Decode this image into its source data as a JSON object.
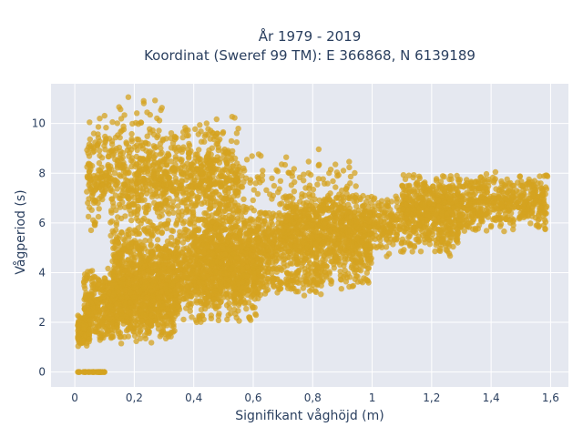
{
  "chart_data": {
    "type": "scatter",
    "title_line1": "År 1979 - 2019",
    "title_line2": "Koordinat (Sweref 99 TM): E 366868, N 6139189",
    "xlabel": "Signifikant våghöjd (m)",
    "ylabel": "Vågperiod (s)",
    "xlim": [
      -0.08,
      1.66
    ],
    "ylim": [
      -0.6,
      11.6
    ],
    "x_ticks": [
      0,
      0.2,
      0.4,
      0.6,
      0.8,
      1,
      1.2,
      1.4,
      1.6
    ],
    "x_tick_labels": [
      "0",
      "0,2",
      "0,4",
      "0,6",
      "0,8",
      "1",
      "1,2",
      "1,4",
      "1,6"
    ],
    "y_ticks": [
      0,
      2,
      4,
      6,
      8,
      10
    ],
    "y_tick_labels": [
      "0",
      "2",
      "4",
      "6",
      "8",
      "10"
    ],
    "grid": true,
    "colors": {
      "marker": "#d4a320",
      "plot_bg": "#e5e8f0",
      "grid": "#ffffff",
      "text": "#2a3f5f"
    },
    "series": [
      {
        "regions": [
          {
            "xmin": 0.01,
            "xmax": 0.1,
            "ymin": 0.0,
            "ymax": 0.0,
            "n": 40
          },
          {
            "xmin": 0.01,
            "xmax": 0.05,
            "ymin": 1.0,
            "ymax": 2.4,
            "n": 120
          },
          {
            "xmin": 0.03,
            "xmax": 0.34,
            "ymin": 1.1,
            "ymax": 4.3,
            "n": 900
          },
          {
            "xmin": 0.12,
            "xmax": 0.62,
            "ymin": 1.9,
            "ymax": 6.2,
            "n": 1400
          },
          {
            "xmin": 0.4,
            "xmax": 1.0,
            "ymin": 3.2,
            "ymax": 6.8,
            "n": 1100
          },
          {
            "xmin": 0.7,
            "xmax": 1.3,
            "ymin": 4.6,
            "ymax": 7.3,
            "n": 900
          },
          {
            "xmin": 1.1,
            "xmax": 1.59,
            "ymin": 5.6,
            "ymax": 8.1,
            "n": 800
          },
          {
            "xmin": 0.04,
            "xmax": 0.55,
            "ymin": 5.5,
            "ymax": 10.3,
            "n": 900
          },
          {
            "xmin": 0.2,
            "xmax": 0.95,
            "ymin": 5.8,
            "ymax": 9.2,
            "n": 250
          },
          {
            "xmin": 0.3,
            "xmax": 0.85,
            "ymin": 3.0,
            "ymax": 4.2,
            "n": 200
          },
          {
            "xmin": 0.08,
            "xmax": 0.3,
            "ymin": 9.5,
            "ymax": 11.3,
            "n": 20
          }
        ]
      }
    ]
  }
}
